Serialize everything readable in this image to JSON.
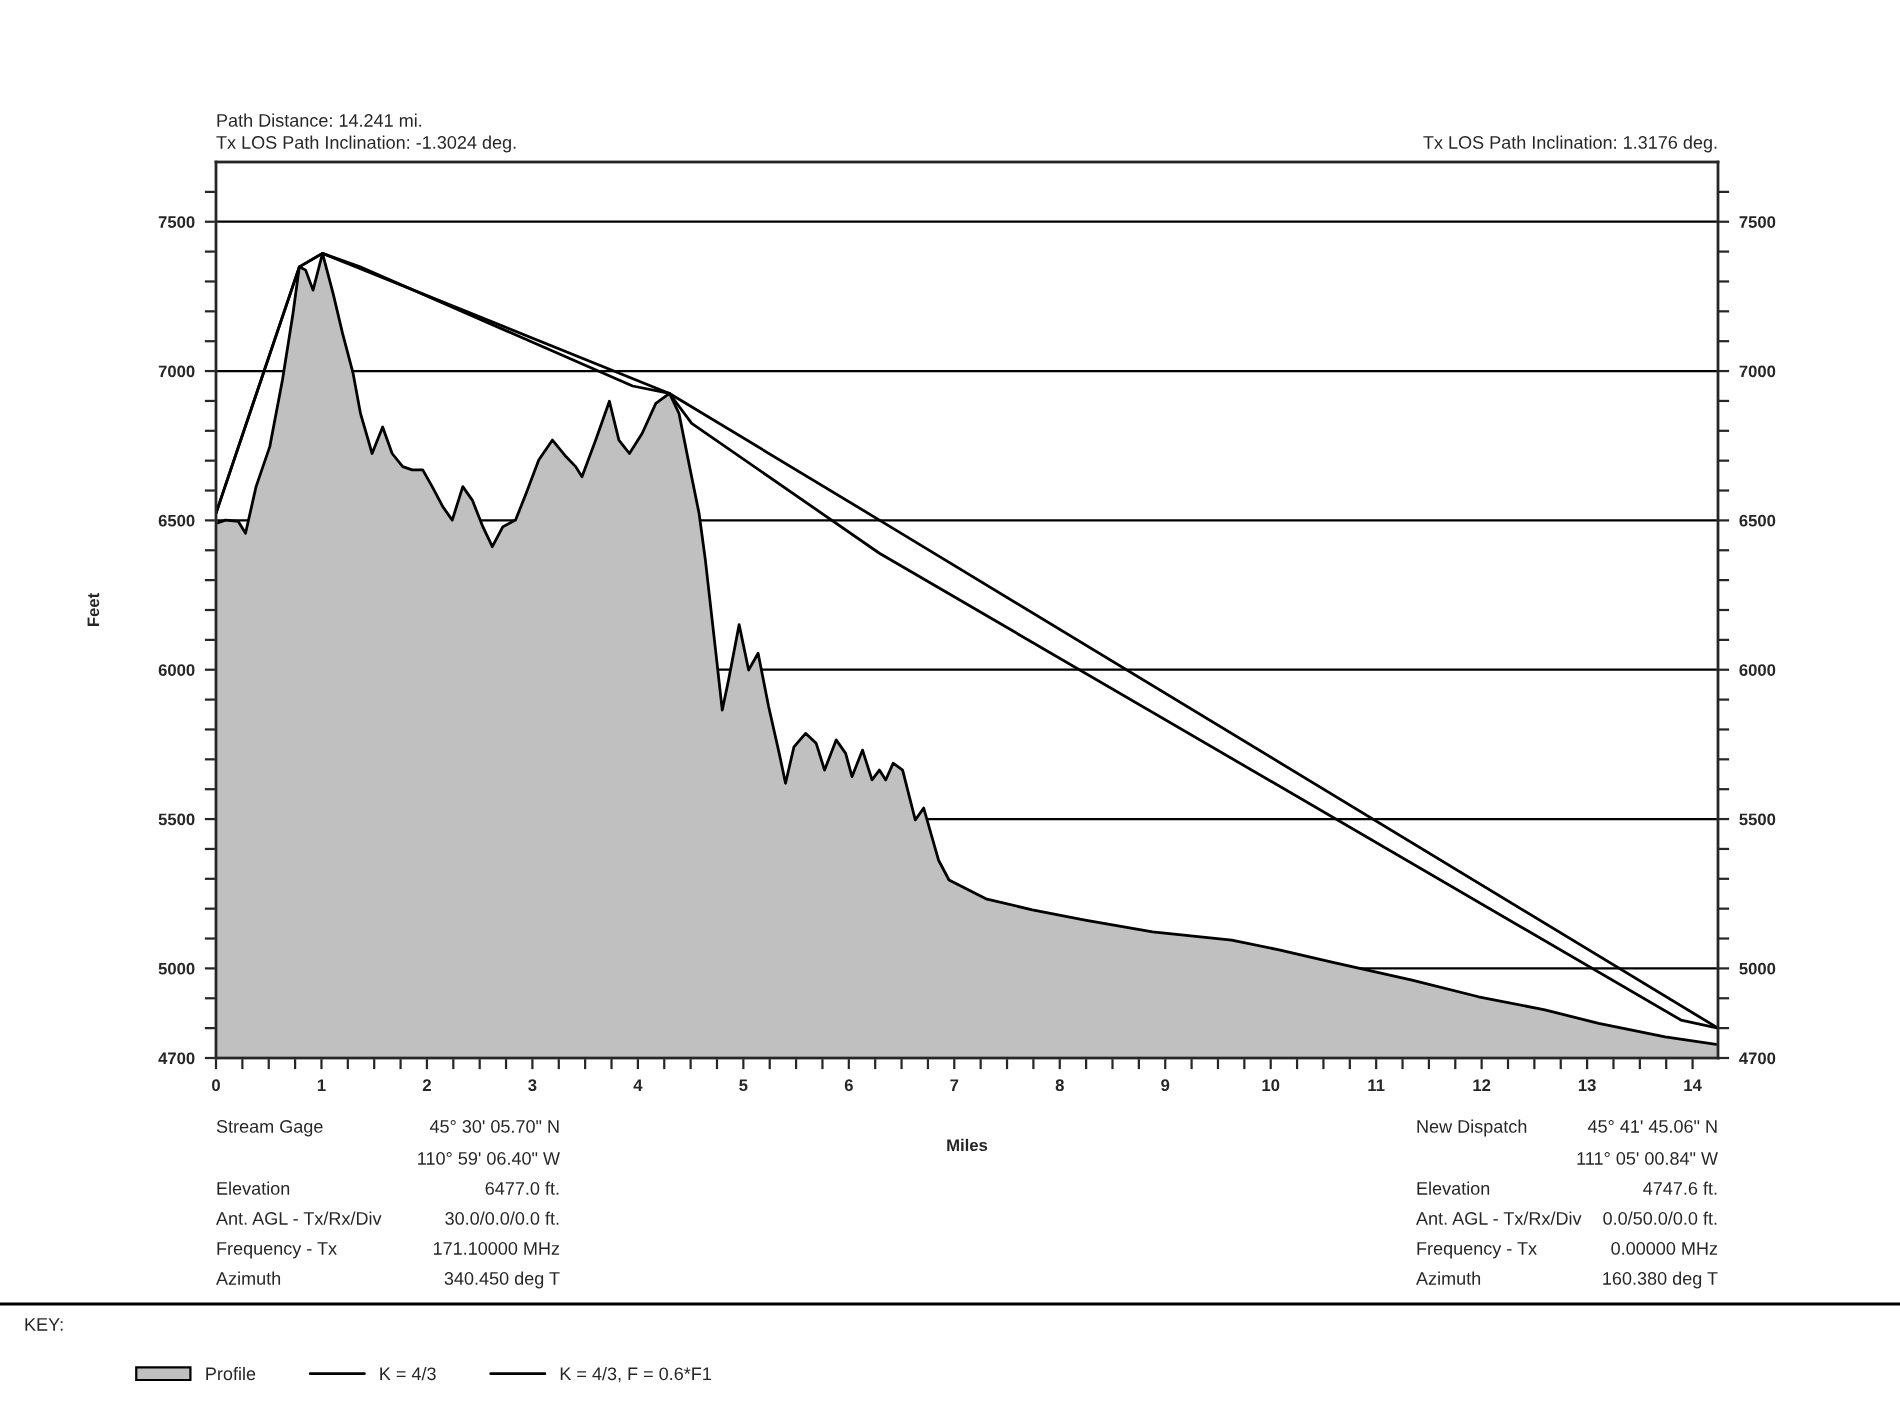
{
  "chart_data": {
    "type": "area",
    "xlabel": "Miles",
    "ylabel": "Feet",
    "annotations": [
      "Path Distance: 14.241 mi.",
      "Tx LOS Path Inclination: -1.3024 deg.",
      "Tx LOS Path Inclination: 1.3176 deg.",
      "KEY:",
      "Stream Gage",
      "45° 30' 05.70\" N",
      "110° 59' 06.40\" W",
      "Elevation",
      "6477.0 ft.",
      "Ant. AGL - Tx/Rx/Div",
      "30.0/0.0/0.0 ft.",
      "Frequency - Tx",
      "171.10000 MHz",
      "Azimuth",
      "340.450 deg T",
      "New Dispatch",
      "45° 41' 45.06\" N",
      "111° 05' 00.84\" W",
      "Elevation",
      "4747.6 ft.",
      "Ant. AGL - Tx/Rx/Div",
      "0.0/50.0/0.0 ft.",
      "Frequency - Tx",
      "0.00000 MHz",
      "Azimuth",
      "160.380 deg T"
    ],
    "series": [
      {
        "name": "Profile",
        "color": "#c0c0c0",
        "x": [
          0,
          0.09,
          0.21,
          0.28,
          0.38,
          0.51,
          0.63,
          0.73,
          0.79,
          0.85,
          0.92,
          1.01,
          1.11,
          1.2,
          1.3,
          1.37,
          1.48,
          1.58,
          1.67,
          1.77,
          1.86,
          1.96,
          2.05,
          2.15,
          2.24,
          2.34,
          2.43,
          2.53,
          2.62,
          2.72,
          2.84,
          2.94,
          3.06,
          3.19,
          3.32,
          3.41,
          3.47,
          3.6,
          3.73,
          3.82,
          3.92,
          4.04,
          4.17,
          4.3,
          4.39,
          4.49,
          4.58,
          4.64,
          4.74,
          4.8,
          4.86,
          4.96,
          5.05,
          5.14,
          5.24,
          5.34,
          5.4,
          5.48,
          5.59,
          5.69,
          5.77,
          5.88,
          5.97,
          6.03,
          6.13,
          6.22,
          6.29,
          6.35,
          6.42,
          6.51,
          6.63,
          6.71,
          6.85,
          6.95,
          7.3,
          7.74,
          8.24,
          8.88,
          9.63,
          10.08,
          10.58,
          11.34,
          11.97,
          12.6,
          13.11,
          13.74,
          14.241
        ],
        "values": [
          6490,
          6501,
          6497,
          6457,
          6613,
          6747,
          6970,
          7193,
          7349,
          7338,
          7271,
          7394,
          7260,
          7126,
          6992,
          6858,
          6724,
          6813,
          6724,
          6680,
          6669,
          6669,
          6613,
          6546,
          6501,
          6613,
          6568,
          6479,
          6412,
          6479,
          6501,
          6590,
          6702,
          6769,
          6713,
          6680,
          6646,
          6769,
          6899,
          6769,
          6724,
          6791,
          6892,
          6925,
          6858,
          6680,
          6524,
          6367,
          6055,
          5865,
          5966,
          6151,
          5999,
          6055,
          5876,
          5720,
          5620,
          5742,
          5787,
          5754,
          5664,
          5765,
          5720,
          5642,
          5731,
          5631,
          5664,
          5631,
          5687,
          5664,
          5497,
          5537,
          5363,
          5296,
          5233,
          5196,
          5162,
          5122,
          5095,
          5062,
          5021,
          4961,
          4905,
          4861,
          4816,
          4771,
          4745
        ]
      },
      {
        "name": "K = 4/3",
        "type": "line",
        "color": "#000000",
        "x": [
          0,
          0.79,
          1.01,
          4.3,
          6.29,
          14.241
        ],
        "values": [
          6524,
          7349,
          7394,
          6925,
          6501,
          4800
        ]
      },
      {
        "name": "K = 4/3, F = 0.6*F1",
        "type": "line",
        "color": "#000000",
        "x": [
          0,
          0.79,
          1.01,
          1.36,
          3.95,
          4.3,
          4.51,
          6.29,
          13.89,
          14.241
        ],
        "values": [
          6524,
          7349,
          7394,
          7350,
          6950,
          6925,
          6825,
          6390,
          4827,
          4800
        ]
      }
    ],
    "xlim": [
      0,
      14.241
    ],
    "xticks": [
      0,
      {
        "value": 0.25,
        "label": null
      },
      {
        "value": 0.5,
        "label": null
      },
      {
        "value": 0.75,
        "label": null
      },
      1,
      {
        "value": 1.25,
        "label": null
      },
      {
        "value": 1.5,
        "label": null
      },
      {
        "value": 1.75,
        "label": null
      },
      2,
      {
        "value": 2.25,
        "label": null
      },
      {
        "value": 2.5,
        "label": null
      },
      {
        "value": 2.75,
        "label": null
      },
      3,
      {
        "value": 3.25,
        "label": null
      },
      {
        "value": 3.5,
        "label": null
      },
      {
        "value": 3.75,
        "label": null
      },
      4,
      {
        "value": 4.25,
        "label": null
      },
      {
        "value": 4.5,
        "label": null
      },
      {
        "value": 4.75,
        "label": null
      },
      5,
      {
        "value": 5.25,
        "label": null
      },
      {
        "value": 5.5,
        "label": null
      },
      {
        "value": 5.75,
        "label": null
      },
      6,
      {
        "value": 6.25,
        "label": null
      },
      {
        "value": 6.5,
        "label": null
      },
      {
        "value": 6.75,
        "label": null
      },
      7,
      {
        "value": 7.25,
        "label": null
      },
      {
        "value": 7.5,
        "label": null
      },
      {
        "value": 7.75,
        "label": null
      },
      8,
      {
        "value": 8.25,
        "label": null
      },
      {
        "value": 8.5,
        "label": null
      },
      {
        "value": 8.75,
        "label": null
      },
      9,
      {
        "value": 9.25,
        "label": null
      },
      {
        "value": 9.5,
        "label": null
      },
      {
        "value": 9.75,
        "label": null
      },
      10,
      {
        "value": 10.25,
        "label": null
      },
      {
        "value": 10.5,
        "label": null
      },
      {
        "value": 10.75,
        "label": null
      },
      11,
      {
        "value": 11.25,
        "label": null
      },
      {
        "value": 11.5,
        "label": null
      },
      {
        "value": 11.75,
        "label": null
      },
      12,
      {
        "value": 12.25,
        "label": null
      },
      {
        "value": 12.5,
        "label": null
      },
      {
        "value": 12.75,
        "label": null
      },
      13,
      {
        "value": 13.25,
        "label": null
      },
      {
        "value": 13.5,
        "label": null
      },
      {
        "value": 13.75,
        "label": null
      },
      14
    ],
    "ylim": [
      4700,
      7700
    ],
    "yticks": [
      4700,
      {
        "value": 4800,
        "label": null
      },
      {
        "value": 4900,
        "label": null
      },
      5000,
      {
        "value": 5100,
        "label": null
      },
      {
        "value": 5200,
        "label": null
      },
      {
        "value": 5300,
        "label": null
      },
      {
        "value": 5400,
        "label": null
      },
      5500,
      {
        "value": 5600,
        "label": null
      },
      {
        "value": 5700,
        "label": null
      },
      {
        "value": 5800,
        "label": null
      },
      {
        "value": 5900,
        "label": null
      },
      6000,
      {
        "value": 6100,
        "label": null
      },
      {
        "value": 6200,
        "label": null
      },
      {
        "value": 6300,
        "label": null
      },
      {
        "value": 6400,
        "label": null
      },
      6500,
      {
        "value": 6600,
        "label": null
      },
      {
        "value": 6700,
        "label": null
      },
      {
        "value": 6800,
        "label": null
      },
      {
        "value": 6900,
        "label": null
      },
      7000,
      {
        "value": 7100,
        "label": null
      },
      {
        "value": 7200,
        "label": null
      },
      {
        "value": 7300,
        "label": null
      },
      {
        "value": 7400,
        "label": null
      },
      7500,
      {
        "value": 7600,
        "label": null
      }
    ],
    "y2lim": [
      4700,
      7700
    ],
    "y2ticks": [
      4700,
      {
        "value": 4800,
        "label": null
      },
      {
        "value": 4900,
        "label": null
      },
      5000,
      {
        "value": 5100,
        "label": null
      },
      {
        "value": 5200,
        "label": null
      },
      {
        "value": 5300,
        "label": null
      },
      {
        "value": 5400,
        "label": null
      },
      5500,
      {
        "value": 5600,
        "label": null
      },
      {
        "value": 5700,
        "label": null
      },
      {
        "value": 5800,
        "label": null
      },
      {
        "value": 5900,
        "label": null
      },
      6000,
      {
        "value": 6100,
        "label": null
      },
      {
        "value": 6200,
        "label": null
      },
      {
        "value": 6300,
        "label": null
      },
      {
        "value": 6400,
        "label": null
      },
      6500,
      {
        "value": 6600,
        "label": null
      },
      {
        "value": 6700,
        "label": null
      },
      {
        "value": 6800,
        "label": null
      },
      {
        "value": 6900,
        "label": null
      },
      7000,
      {
        "value": 7100,
        "label": null
      },
      {
        "value": 7200,
        "label": null
      },
      {
        "value": 7300,
        "label": null
      },
      {
        "value": 7400,
        "label": null
      },
      7500,
      {
        "value": 7600,
        "label": null
      }
    ],
    "grid": "y",
    "legend": "bottom left"
  }
}
